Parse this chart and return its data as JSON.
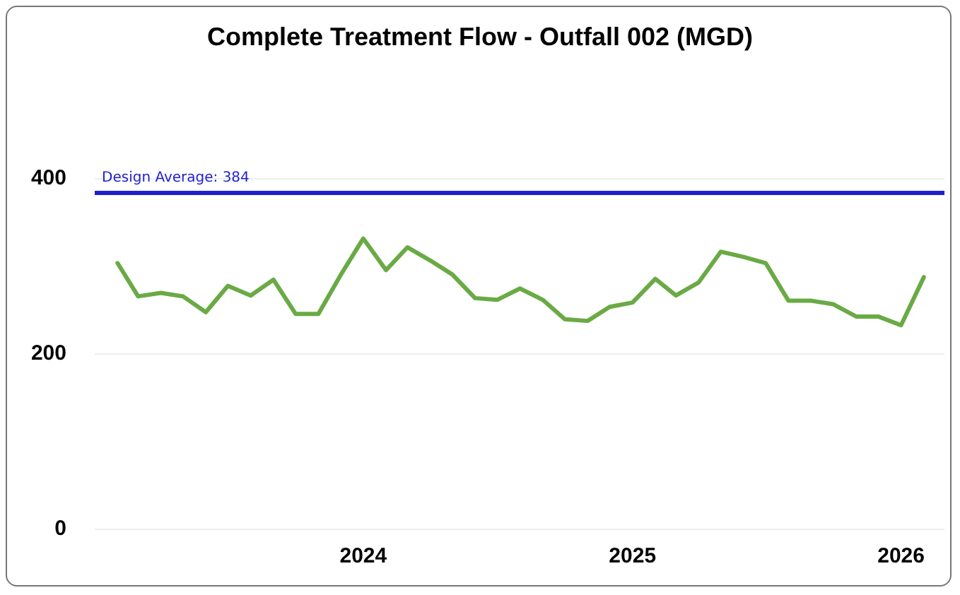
{
  "chart_data": {
    "type": "line",
    "title": "Complete Treatment Flow - Outfall 002 (MGD)",
    "x": [
      "2023-02",
      "2023-03",
      "2023-04",
      "2023-05",
      "2023-06",
      "2023-07",
      "2023-08",
      "2023-09",
      "2023-10",
      "2023-11",
      "2023-12",
      "2024-01",
      "2024-02",
      "2024-03",
      "2024-04",
      "2024-05",
      "2024-06",
      "2024-07",
      "2024-08",
      "2024-09",
      "2024-10",
      "2024-11",
      "2024-12",
      "2025-01",
      "2025-02",
      "2025-03",
      "2025-04",
      "2025-05",
      "2025-06",
      "2025-07",
      "2025-08",
      "2025-09",
      "2025-10",
      "2025-11",
      "2025-12",
      "2026-01",
      "2026-02"
    ],
    "series": [
      {
        "color": "#6aaa45",
        "values": [
          303,
          265,
          269,
          265,
          247,
          277,
          266,
          284,
          245,
          245,
          289,
          331,
          295,
          321,
          306,
          290,
          263,
          261,
          274,
          261,
          239,
          237,
          253,
          258,
          285,
          266,
          281,
          316,
          310,
          303,
          260,
          260,
          256,
          242,
          242,
          232,
          287
        ]
      }
    ],
    "xlim": [
      "2023-01",
      "2026-03"
    ],
    "xticks": [
      {
        "value": "2024-01",
        "label": "2024"
      },
      {
        "value": "2025-01",
        "label": "2025"
      },
      {
        "value": "2026-01",
        "label": "2026"
      }
    ],
    "ylim": [
      0,
      400
    ],
    "yticks": [
      0,
      200,
      400
    ],
    "ref_lines": [
      {
        "axis": "y",
        "value": 384,
        "label": "Design Average: 384",
        "color": "#1f1fd0",
        "line_style": "solid"
      }
    ],
    "grid": "y",
    "marker": "none",
    "line_style": "solid"
  }
}
